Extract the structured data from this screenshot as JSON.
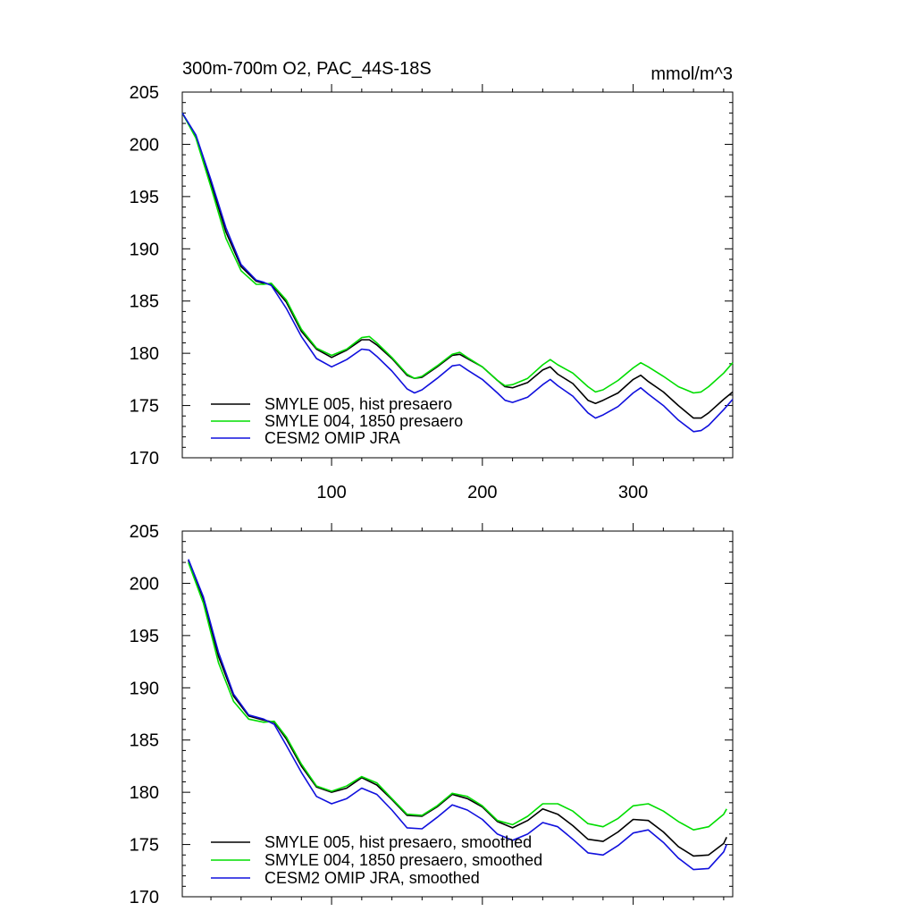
{
  "chart_data": [
    {
      "type": "line",
      "title": "300m-700m O2, PAC_44S-18S",
      "units": "mmol/m^3",
      "xlim": [
        1,
        366
      ],
      "ylim": [
        170,
        205
      ],
      "xticks": [
        100,
        200,
        300
      ],
      "yticks": [
        170,
        175,
        180,
        185,
        190,
        195,
        200,
        205
      ],
      "ytick_labels": [
        "170",
        "175",
        "180",
        "185",
        "190",
        "195",
        "200",
        "205"
      ],
      "xtick_labels": [
        "100",
        "200",
        "300"
      ],
      "legend_position": "bottom-left",
      "series": [
        {
          "name": "SMYLE 005, hist presaero",
          "color": "#000000",
          "x": [
            1,
            10,
            20,
            30,
            40,
            50,
            55,
            60,
            70,
            80,
            90,
            100,
            110,
            120,
            125,
            130,
            140,
            150,
            155,
            160,
            170,
            180,
            185,
            190,
            200,
            210,
            215,
            220,
            230,
            240,
            245,
            250,
            260,
            270,
            275,
            280,
            290,
            300,
            305,
            310,
            320,
            330,
            340,
            345,
            350,
            360,
            366
          ],
          "values": [
            203.0,
            200.8,
            196.3,
            191.6,
            188.3,
            186.9,
            186.7,
            186.6,
            184.9,
            182.1,
            180.4,
            179.6,
            180.3,
            181.3,
            181.3,
            180.8,
            179.5,
            177.9,
            177.6,
            177.7,
            178.7,
            179.8,
            179.9,
            179.5,
            178.7,
            177.4,
            176.8,
            176.7,
            177.2,
            178.4,
            178.7,
            178.0,
            177.1,
            175.5,
            175.2,
            175.5,
            176.2,
            177.5,
            177.9,
            177.3,
            176.3,
            175.0,
            173.8,
            173.8,
            174.3,
            175.6,
            176.3
          ]
        },
        {
          "name": "SMYLE 004, 1850 presaero",
          "color": "#00dd00",
          "x": [
            1,
            10,
            20,
            30,
            40,
            50,
            55,
            60,
            70,
            80,
            90,
            100,
            110,
            120,
            125,
            130,
            140,
            150,
            155,
            160,
            170,
            180,
            185,
            190,
            200,
            210,
            215,
            220,
            230,
            240,
            245,
            250,
            260,
            270,
            275,
            280,
            290,
            300,
            305,
            310,
            320,
            330,
            340,
            345,
            350,
            360,
            366
          ],
          "values": [
            203.0,
            200.6,
            195.9,
            191.0,
            187.9,
            186.6,
            186.6,
            186.7,
            185.1,
            182.3,
            180.5,
            179.8,
            180.4,
            181.5,
            181.6,
            181.0,
            179.6,
            178.0,
            177.6,
            177.8,
            178.8,
            179.9,
            180.1,
            179.6,
            178.7,
            177.4,
            176.9,
            177.0,
            177.6,
            178.9,
            179.4,
            178.9,
            178.1,
            176.8,
            176.3,
            176.5,
            177.4,
            178.6,
            179.1,
            178.7,
            177.8,
            176.8,
            176.2,
            176.3,
            176.8,
            178.1,
            179.1
          ]
        },
        {
          "name": "CESM2 OMIP JRA",
          "color": "#1010dd",
          "x": [
            1,
            10,
            20,
            30,
            40,
            50,
            55,
            60,
            70,
            80,
            90,
            100,
            110,
            120,
            125,
            130,
            140,
            150,
            155,
            160,
            170,
            180,
            185,
            190,
            200,
            210,
            215,
            220,
            230,
            240,
            245,
            250,
            260,
            270,
            275,
            280,
            290,
            300,
            305,
            310,
            320,
            330,
            340,
            345,
            350,
            360,
            366
          ],
          "values": [
            203.0,
            200.9,
            196.6,
            192.0,
            188.5,
            187.0,
            186.8,
            186.5,
            184.3,
            181.6,
            179.5,
            178.7,
            179.4,
            180.4,
            180.3,
            179.7,
            178.3,
            176.6,
            176.2,
            176.5,
            177.6,
            178.8,
            178.9,
            178.4,
            177.5,
            176.2,
            175.5,
            175.3,
            175.8,
            177.0,
            177.5,
            176.9,
            175.9,
            174.3,
            173.8,
            174.1,
            174.9,
            176.2,
            176.7,
            176.1,
            175.0,
            173.6,
            172.5,
            172.6,
            173.1,
            174.6,
            175.6
          ]
        }
      ]
    },
    {
      "type": "line",
      "title": "",
      "units": "",
      "xlim": [
        1,
        366
      ],
      "ylim": [
        170,
        205
      ],
      "xticks": [
        100,
        200,
        300
      ],
      "yticks": [
        170,
        175,
        180,
        185,
        190,
        195,
        200,
        205
      ],
      "ytick_labels": [
        "170",
        "175",
        "180",
        "185",
        "190",
        "195",
        "200",
        "205"
      ],
      "xtick_labels": [],
      "legend_position": "bottom-left",
      "series": [
        {
          "name": "SMYLE 005, hist presaero, smoothed",
          "color": "#000000",
          "x": [
            5,
            15,
            25,
            35,
            45,
            55,
            62,
            70,
            80,
            90,
            100,
            110,
            120,
            130,
            140,
            150,
            160,
            170,
            180,
            190,
            200,
            210,
            220,
            230,
            240,
            250,
            260,
            270,
            280,
            290,
            300,
            310,
            320,
            330,
            340,
            350,
            360,
            362
          ],
          "values": [
            202.2,
            198.5,
            193.0,
            189.2,
            187.3,
            186.9,
            186.7,
            185.1,
            182.5,
            180.5,
            180.0,
            180.4,
            181.4,
            180.7,
            179.3,
            177.8,
            177.7,
            178.6,
            179.8,
            179.4,
            178.6,
            177.2,
            176.6,
            177.3,
            178.4,
            177.9,
            176.8,
            175.5,
            175.3,
            176.2,
            177.4,
            177.3,
            176.2,
            174.8,
            173.9,
            174.0,
            175.1,
            175.7
          ]
        },
        {
          "name": "SMYLE 004, 1850 presaero, smoothed",
          "color": "#00dd00",
          "x": [
            5,
            15,
            25,
            35,
            45,
            55,
            62,
            70,
            80,
            90,
            100,
            110,
            120,
            130,
            140,
            150,
            160,
            170,
            180,
            190,
            200,
            210,
            220,
            230,
            240,
            250,
            260,
            270,
            280,
            290,
            300,
            310,
            320,
            330,
            340,
            350,
            360,
            362
          ],
          "values": [
            202.0,
            198.1,
            192.4,
            188.7,
            187.0,
            186.7,
            186.8,
            185.3,
            182.7,
            180.6,
            180.1,
            180.6,
            181.5,
            180.9,
            179.4,
            177.9,
            177.8,
            178.7,
            179.9,
            179.6,
            178.7,
            177.3,
            176.9,
            177.7,
            178.9,
            178.9,
            178.2,
            177.0,
            176.7,
            177.5,
            178.7,
            178.9,
            178.2,
            177.2,
            176.4,
            176.7,
            177.9,
            178.4
          ]
        },
        {
          "name": "CESM2 OMIP JRA, smoothed",
          "color": "#1010dd",
          "x": [
            5,
            15,
            25,
            35,
            45,
            55,
            62,
            70,
            80,
            90,
            100,
            110,
            120,
            130,
            140,
            150,
            160,
            170,
            180,
            190,
            200,
            210,
            220,
            230,
            240,
            250,
            260,
            270,
            280,
            290,
            300,
            310,
            320,
            330,
            340,
            350,
            360,
            362
          ],
          "values": [
            202.3,
            198.7,
            193.4,
            189.4,
            187.4,
            187.0,
            186.5,
            184.5,
            181.9,
            179.6,
            178.9,
            179.4,
            180.4,
            179.8,
            178.3,
            176.6,
            176.5,
            177.6,
            178.8,
            178.3,
            177.4,
            176.0,
            175.4,
            176.0,
            177.1,
            176.7,
            175.5,
            174.2,
            174.0,
            174.9,
            176.1,
            176.4,
            175.2,
            173.7,
            172.6,
            172.7,
            174.3,
            175.0
          ]
        }
      ]
    }
  ]
}
